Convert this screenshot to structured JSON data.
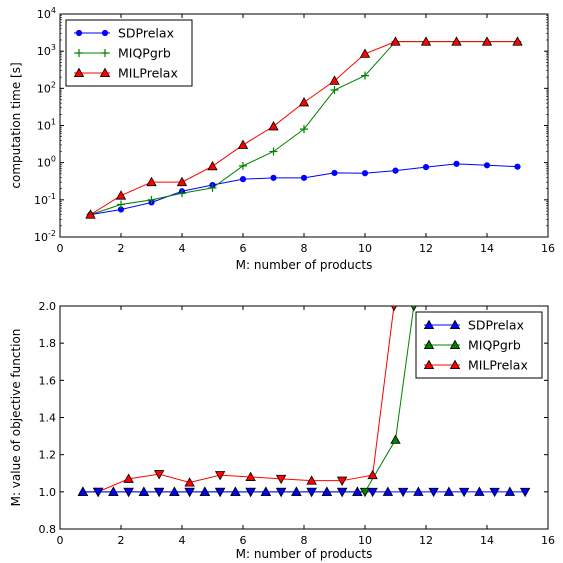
{
  "chart_data": [
    {
      "type": "line",
      "title": "",
      "xlabel": "M: number of products",
      "ylabel": "computation time [s]",
      "xlim": [
        0,
        16
      ],
      "ylim": [
        0.01,
        10000
      ],
      "yscale": "log",
      "x_ticks": [
        "0",
        "2",
        "4",
        "6",
        "8",
        "10",
        "12",
        "14",
        "16"
      ],
      "y_ticks": [
        {
          "base": "10",
          "exp": "-2"
        },
        {
          "base": "10",
          "exp": "-1"
        },
        {
          "base": "10",
          "exp": "0"
        },
        {
          "base": "10",
          "exp": "1"
        },
        {
          "base": "10",
          "exp": "2"
        },
        {
          "base": "10",
          "exp": "3"
        },
        {
          "base": "10",
          "exp": "4"
        }
      ],
      "legend_position": "top-left",
      "grid": false,
      "series": [
        {
          "name": "SDPrelax",
          "color": "#0000ff",
          "marker": "circle",
          "x": [
            1,
            2,
            3,
            4,
            5,
            6,
            7,
            8,
            9,
            10,
            11,
            12,
            13,
            14,
            15
          ],
          "y": [
            0.04,
            0.055,
            0.085,
            0.17,
            0.25,
            0.36,
            0.39,
            0.39,
            0.53,
            0.52,
            0.61,
            0.76,
            0.93,
            0.85,
            0.78
          ]
        },
        {
          "name": "MIQPgrb",
          "color": "#008000",
          "marker": "plus",
          "x": [
            1,
            2,
            3,
            4,
            5,
            6,
            7,
            8,
            9,
            10,
            11,
            12,
            13,
            14,
            15
          ],
          "y": [
            0.04,
            0.075,
            0.1,
            0.15,
            0.21,
            0.82,
            2.0,
            8.0,
            90,
            220,
            1800,
            1800,
            1800,
            1800,
            1800
          ]
        },
        {
          "name": "MILPrelax",
          "color": "#ff0000",
          "marker": "triangle-up",
          "x": [
            1,
            2,
            3,
            4,
            5,
            6,
            7,
            8,
            9,
            10,
            11,
            12,
            13,
            14,
            15
          ],
          "y": [
            0.04,
            0.13,
            0.3,
            0.3,
            0.8,
            3.0,
            9.5,
            42,
            160,
            850,
            1800,
            1800,
            1800,
            1800,
            1800
          ]
        }
      ]
    },
    {
      "type": "line",
      "title": "",
      "xlabel": "M: number of products",
      "ylabel": "M: value of objective function",
      "xlim": [
        0,
        16
      ],
      "ylim": [
        0.8,
        2.0
      ],
      "x_ticks": [
        "0",
        "2",
        "4",
        "6",
        "8",
        "10",
        "12",
        "14",
        "16"
      ],
      "y_ticks": [
        "0.8",
        "1.0",
        "1.2",
        "1.4",
        "1.6",
        "1.8",
        "2.0"
      ],
      "legend_position": "top-right",
      "grid": false,
      "series": [
        {
          "name": "SDPrelax",
          "color": "#0000ff",
          "marker": "triangle-up-down",
          "x": [
            0.75,
            1.25,
            1.75,
            2.25,
            2.75,
            3.25,
            3.75,
            4.25,
            4.75,
            5.25,
            5.75,
            6.25,
            6.75,
            7.25,
            7.75,
            8.25,
            8.75,
            9.25,
            9.75,
            10.25,
            10.75,
            11.25,
            11.75,
            12.25,
            12.75,
            13.25,
            13.75,
            14.25,
            14.75,
            15.25
          ],
          "y": [
            1,
            1,
            1,
            1,
            1,
            1,
            1,
            1,
            1,
            1,
            1,
            1,
            1,
            1,
            1,
            1,
            1,
            1,
            1,
            1,
            1,
            1,
            1,
            1,
            1,
            1,
            1,
            1,
            1,
            1
          ]
        },
        {
          "name": "MIQPgrb",
          "color": "#008000",
          "marker": "triangle-up-down",
          "x": [
            0.75,
            1.25,
            1.75,
            2.25,
            2.75,
            3.25,
            3.75,
            4.25,
            4.75,
            5.25,
            5.75,
            6.25,
            6.75,
            7.25,
            7.75,
            8.25,
            8.75,
            9.25,
            9.75,
            10.0,
            11.0,
            11.6
          ],
          "y": [
            1,
            1,
            1,
            1,
            1,
            1,
            1,
            1,
            1,
            1,
            1,
            1,
            1,
            1,
            1,
            1,
            1,
            1,
            1,
            1,
            1.28,
            2.0
          ]
        },
        {
          "name": "MILPrelax",
          "color": "#ff0000",
          "marker": "triangle-up-down",
          "x": [
            0.75,
            1.25,
            2.25,
            3.25,
            4.25,
            5.25,
            6.25,
            7.25,
            8.25,
            9.25,
            10.25,
            10.95
          ],
          "y": [
            1,
            1,
            1.07,
            1.095,
            1.05,
            1.09,
            1.08,
            1.07,
            1.06,
            1.06,
            1.09,
            2.0
          ]
        }
      ]
    }
  ]
}
